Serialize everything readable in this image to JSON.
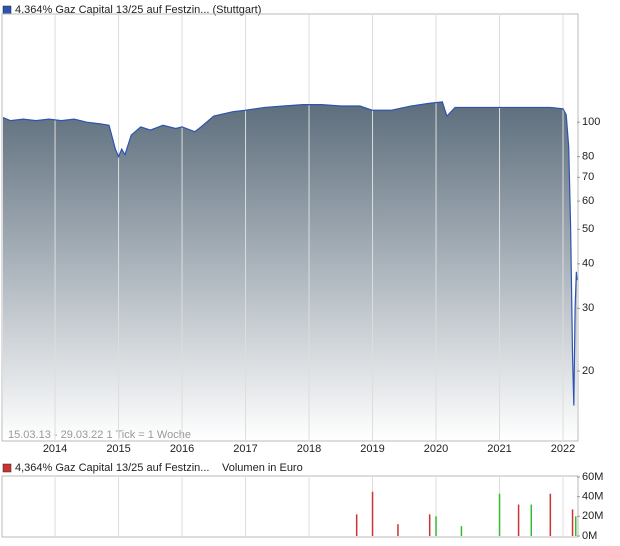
{
  "chart_data": [
    {
      "type": "area",
      "legend": "4,364% Gaz Capital 13/25 auf Festzin... (Stuttgart)",
      "note": "15.03.13 - 29.03.22   1 Tick = 1 Woche",
      "color": "#2f54b0",
      "log_scale": true,
      "grid": "x",
      "x": [
        2013.18,
        2013.3,
        2013.5,
        2013.7,
        2013.9,
        2014.1,
        2014.3,
        2014.5,
        2014.7,
        2014.85,
        2014.95,
        2015.0,
        2015.05,
        2015.1,
        2015.2,
        2015.35,
        2015.5,
        2015.7,
        2015.9,
        2016.0,
        2016.2,
        2016.3,
        2016.5,
        2016.8,
        2017.0,
        2017.3,
        2017.6,
        2017.9,
        2018.2,
        2018.5,
        2018.8,
        2019.0,
        2019.3,
        2019.6,
        2019.9,
        2020.1,
        2020.17,
        2020.3,
        2020.6,
        2020.9,
        2021.2,
        2021.5,
        2021.8,
        2022.0,
        2022.05,
        2022.09,
        2022.12,
        2022.15,
        2022.17,
        2022.19,
        2022.21,
        2022.22
      ],
      "values": [
        103,
        101,
        102,
        101,
        102,
        101,
        102,
        100,
        99,
        98,
        84,
        80,
        84,
        81,
        92,
        97,
        95,
        98,
        96,
        97,
        94,
        97,
        104,
        107,
        108,
        110,
        111,
        112,
        112,
        111,
        111,
        108,
        108,
        111,
        113,
        114,
        104,
        110,
        110,
        110,
        110,
        110,
        110,
        109,
        105,
        85,
        50,
        22,
        16,
        30,
        38,
        36
      ],
      "xlim": [
        2013.18,
        2022.22
      ],
      "xticks": [
        2014,
        2015,
        2016,
        2017,
        2018,
        2019,
        2020,
        2021,
        2022
      ],
      "ylim": [
        12.8,
        200
      ],
      "yticks": [
        20,
        30,
        40,
        50,
        60,
        70,
        80,
        100
      ]
    },
    {
      "type": "bar",
      "legend": "4,364% Gaz Capital 13/25 auf Festzin...",
      "ylabel": "Volumen in Euro",
      "grid": "x",
      "x": [
        2018.75,
        2019.0,
        2019.4,
        2019.9,
        2020.0,
        2020.4,
        2021.0,
        2021.3,
        2021.5,
        2021.8,
        2022.15,
        2022.2
      ],
      "values": [
        22000000,
        45000000,
        12000000,
        22000000,
        20000000,
        10000000,
        43000000,
        32000000,
        32000000,
        43000000,
        27000000,
        20000000
      ],
      "colors": [
        "#cc3333",
        "#cc3333",
        "#cc3333",
        "#cc3333",
        "#33bb33",
        "#33bb33",
        "#33bb33",
        "#cc3333",
        "#33bb33",
        "#cc3333",
        "#cc3333",
        "#33bb33"
      ],
      "xlim": [
        2013.18,
        2022.22
      ],
      "xticks": [
        2014,
        2015,
        2016,
        2017,
        2018,
        2019,
        2020,
        2021,
        2022
      ],
      "ylim": [
        0,
        60000000
      ],
      "yticks": [
        {
          "value": 0,
          "label": "0M"
        },
        {
          "value": 20000000,
          "label": "20M"
        },
        {
          "value": 40000000,
          "label": "40M"
        },
        {
          "value": 60000000,
          "label": "60M"
        }
      ]
    }
  ]
}
